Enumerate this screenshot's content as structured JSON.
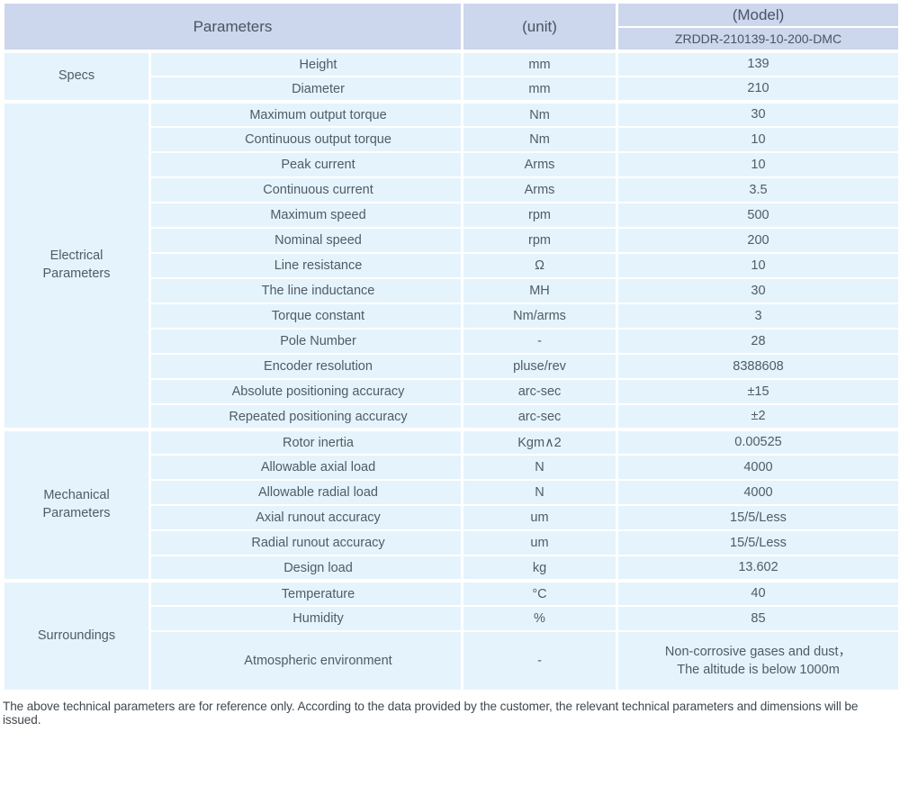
{
  "header": {
    "parameters_label": "Parameters",
    "unit_label": "(unit)",
    "model_label": "(Model)",
    "model_value": "ZRDDR-210139-10-200-DMC"
  },
  "sections": [
    {
      "group": "Specs",
      "rows": [
        {
          "parameter": "Height",
          "unit": "mm",
          "value": "139"
        },
        {
          "parameter": "Diameter",
          "unit": "mm",
          "value": "210"
        }
      ]
    },
    {
      "group": "Electrical Parameters",
      "rows": [
        {
          "parameter": "Maximum output torque",
          "unit": "Nm",
          "value": "30"
        },
        {
          "parameter": "Continuous output torque",
          "unit": "Nm",
          "value": "10"
        },
        {
          "parameter": "Peak current",
          "unit": "Arms",
          "value": "10"
        },
        {
          "parameter": "Continuous current",
          "unit": "Arms",
          "value": "3.5"
        },
        {
          "parameter": "Maximum speed",
          "unit": "rpm",
          "value": "500"
        },
        {
          "parameter": "Nominal speed",
          "unit": "rpm",
          "value": "200"
        },
        {
          "parameter": "Line resistance",
          "unit": "Ω",
          "value": "10"
        },
        {
          "parameter": "The line inductance",
          "unit": "MH",
          "value": "30"
        },
        {
          "parameter": "Torque constant",
          "unit": "Nm/arms",
          "value": "3"
        },
        {
          "parameter": "Pole Number",
          "unit": "-",
          "value": "28"
        },
        {
          "parameter": "Encoder resolution",
          "unit": "pluse/rev",
          "value": "8388608"
        },
        {
          "parameter": "Absolute positioning accuracy",
          "unit": "arc-sec",
          "value": "±15"
        },
        {
          "parameter": "Repeated positioning accuracy",
          "unit": "arc-sec",
          "value": "±2"
        }
      ]
    },
    {
      "group": "Mechanical Parameters",
      "rows": [
        {
          "parameter": "Rotor inertia",
          "unit": "Kgm∧2",
          "value": "0.00525"
        },
        {
          "parameter": "Allowable axial load",
          "unit": "N",
          "value": "4000"
        },
        {
          "parameter": "Allowable radial load",
          "unit": "N",
          "value": "4000"
        },
        {
          "parameter": "Axial runout accuracy",
          "unit": "um",
          "value": "15/5/Less"
        },
        {
          "parameter": "Radial runout accuracy",
          "unit": "um",
          "value": "15/5/Less"
        },
        {
          "parameter": "Design load",
          "unit": "kg",
          "value": "13.602"
        }
      ]
    },
    {
      "group": "Surroundings",
      "rows": [
        {
          "parameter": "Temperature",
          "unit": "°C",
          "value": "40"
        },
        {
          "parameter": "Humidity",
          "unit": "%",
          "value": "85"
        },
        {
          "parameter": "Atmospheric environment",
          "unit": "-",
          "value_lines": [
            "Non-corrosive gases and dust，",
            "The altitude is below 1000m"
          ],
          "tall": true
        }
      ]
    }
  ],
  "footer": {
    "note": "The above technical parameters are for reference only. According to the data provided by the customer, the relevant technical parameters and dimensions will be issued."
  },
  "colors": {
    "header_bg": "#ccd6ec",
    "row_bg": "#e5f3fc",
    "separator": "#ffffff",
    "table_text": "#4f5c66",
    "footer_text": "#40474d"
  }
}
